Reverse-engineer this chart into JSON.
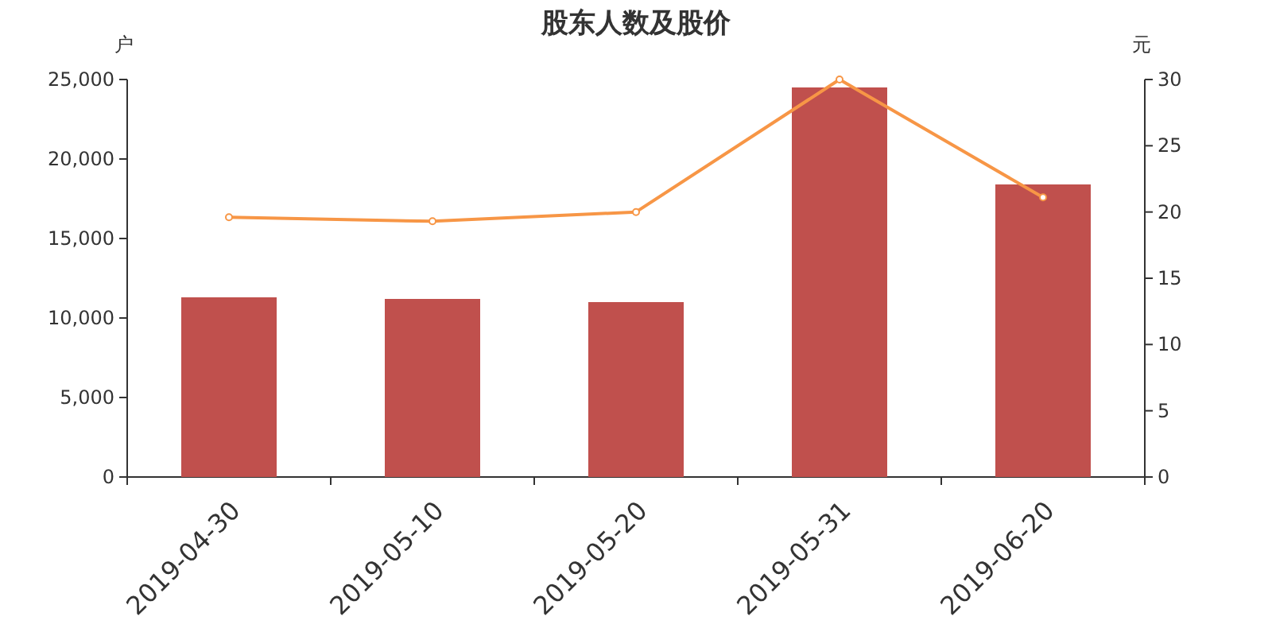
{
  "chart_data": {
    "type": "bar",
    "title": "股东人数及股价",
    "ylabel": "户",
    "y2label": "元",
    "categories": [
      "2019-04-30",
      "2019-05-10",
      "2019-05-20",
      "2019-05-31",
      "2019-06-20"
    ],
    "series": [
      {
        "color": "#c0504d",
        "values": [
          11300,
          11200,
          11000,
          24500,
          18400
        ]
      },
      {
        "type": "line",
        "axis": "y2",
        "color": "#f79646",
        "marker": "circle",
        "values": [
          19.6,
          19.3,
          20.0,
          30.0,
          21.1
        ]
      }
    ],
    "ylim": [
      0,
      25000
    ],
    "yticks": [
      0,
      {
        "value": 5000,
        "label": "5,000"
      },
      {
        "value": 10000,
        "label": "10,000"
      },
      {
        "value": 15000,
        "label": "15,000"
      },
      {
        "value": 20000,
        "label": "20,000"
      },
      {
        "value": 25000,
        "label": "25,000"
      }
    ],
    "y2lim": [
      0,
      30
    ],
    "y2ticks": [
      0,
      5,
      10,
      15,
      20,
      25,
      30
    ],
    "grid": false
  }
}
